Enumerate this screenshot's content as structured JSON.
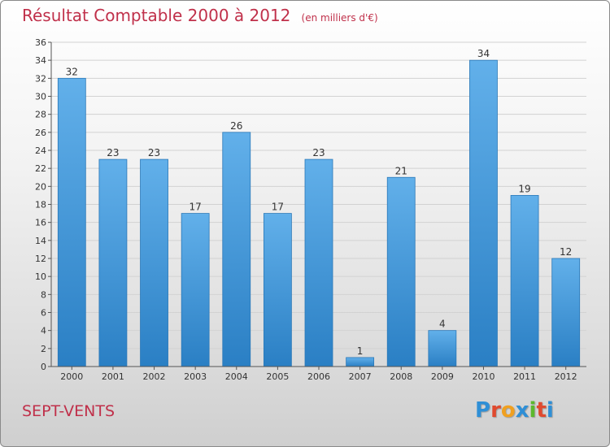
{
  "chart_data": {
    "type": "bar",
    "title": "Résultat Comptable 2000 à 2012",
    "unit_label": "(en milliers d'€)",
    "categories": [
      "2000",
      "2001",
      "2002",
      "2003",
      "2004",
      "2005",
      "2006",
      "2007",
      "2008",
      "2009",
      "2010",
      "2011",
      "2012"
    ],
    "values": [
      32,
      23,
      23,
      17,
      26,
      17,
      23,
      1,
      21,
      4,
      34,
      19,
      12
    ],
    "ylim": [
      0,
      36
    ],
    "yticks": [
      0,
      2,
      4,
      6,
      8,
      10,
      12,
      14,
      16,
      18,
      20,
      22,
      24,
      26,
      28,
      30,
      32,
      34,
      36
    ],
    "grid": true,
    "bar_color_top": "#62b0ea",
    "bar_color_bottom": "#2a7fc4"
  },
  "commune": "SEPT-VENTS",
  "logo": {
    "letters": [
      "P",
      "r",
      "o",
      "x",
      "i",
      "t",
      "i"
    ],
    "colors": [
      "#2f8fd6",
      "#e04a2f",
      "#f0a020",
      "#2f8fd6",
      "#5cb82e",
      "#e04a2f",
      "#2f8fd6"
    ]
  }
}
